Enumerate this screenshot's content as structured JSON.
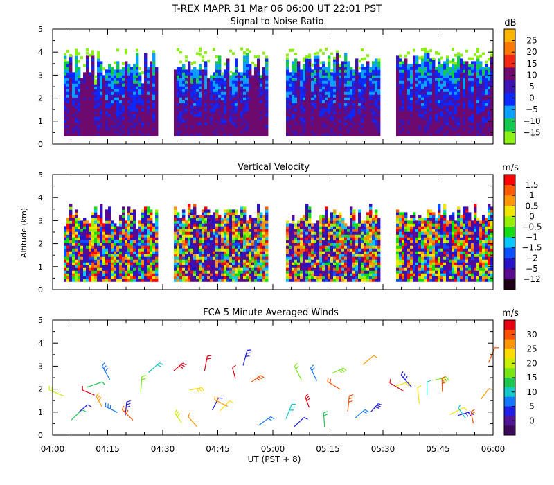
{
  "figure": {
    "title": "T-REX   MAPR 31 Mar 06   06:00 UT   22:01   PST",
    "xlabel": "UT  (PST + 8)",
    "ylabel": "Altitude (km)",
    "x_ticks": [
      "04:00",
      "04:15",
      "04:30",
      "04:45",
      "05:00",
      "05:15",
      "05:30",
      "05:45",
      "06:00"
    ],
    "y_ticks": [
      "0",
      "1",
      "2",
      "3",
      "4",
      "5"
    ]
  },
  "chart_data": [
    {
      "type": "heatmap",
      "title": "Signal to Noise Ratio",
      "colorbar_unit": "dB",
      "colorbar_ticks": [
        "25",
        "20",
        "15",
        "10",
        "5",
        "0",
        "−5",
        "−10",
        "−15"
      ],
      "colors": [
        "#ffb400",
        "#ff7800",
        "#f02814",
        "#6e0a6e",
        "#3c14b4",
        "#0a28ff",
        "#0aa0ff",
        "#14c850",
        "#8cf014"
      ],
      "xlim_hours": [
        4.0,
        6.0
      ],
      "ylim_km": [
        0,
        5
      ],
      "data_segments_hours": [
        [
          4.05,
          4.47
        ],
        [
          4.55,
          4.97
        ],
        [
          5.06,
          5.48
        ],
        [
          5.56,
          5.99
        ]
      ],
      "altitude_range_km": [
        0.35,
        4.0
      ]
    },
    {
      "type": "heatmap",
      "title": "Vertical Velocity",
      "colorbar_unit": "m/s",
      "colorbar_ticks": [
        "1.5",
        "1",
        "0.5",
        "0",
        "−0.5",
        "−1",
        "−1.5",
        "−2",
        "−5",
        "−12"
      ],
      "colors": [
        "#ff0000",
        "#ff5a00",
        "#ff9600",
        "#f0e600",
        "#96f000",
        "#14dc14",
        "#0ac8ff",
        "#0a50ff",
        "#2814c8",
        "#5a0a8c",
        "#1e0014"
      ],
      "xlim_hours": [
        4.0,
        6.0
      ],
      "ylim_km": [
        0,
        5
      ],
      "data_segments_hours": [
        [
          4.05,
          4.47
        ],
        [
          4.55,
          4.97
        ],
        [
          5.06,
          5.48
        ],
        [
          5.56,
          5.99
        ]
      ],
      "altitude_range_km": [
        0.35,
        3.8
      ]
    },
    {
      "type": "scatter",
      "title": "FCA 5 Minute Averaged Winds",
      "colorbar_unit": "m/s",
      "colorbar_ticks": [
        "30",
        "25",
        "20",
        "15",
        "10",
        "5",
        "0"
      ],
      "colors": [
        "#e60014",
        "#ff5000",
        "#ff9600",
        "#ffdc00",
        "#c8f000",
        "#78e614",
        "#1ec850",
        "#14c8c8",
        "#1478ff",
        "#1e1ee6",
        "#501496",
        "#3c0a5a"
      ],
      "xlim_hours": [
        4.0,
        6.0
      ],
      "ylim_km": [
        0,
        5
      ],
      "data_segments_hours": [
        [
          4.05,
          4.47
        ],
        [
          4.55,
          4.97
        ],
        [
          5.06,
          5.48
        ],
        [
          5.56,
          5.99
        ]
      ],
      "barb_spacing_hours": 0.035,
      "altitude_range_km": [
        0.3,
        3.2
      ]
    }
  ]
}
